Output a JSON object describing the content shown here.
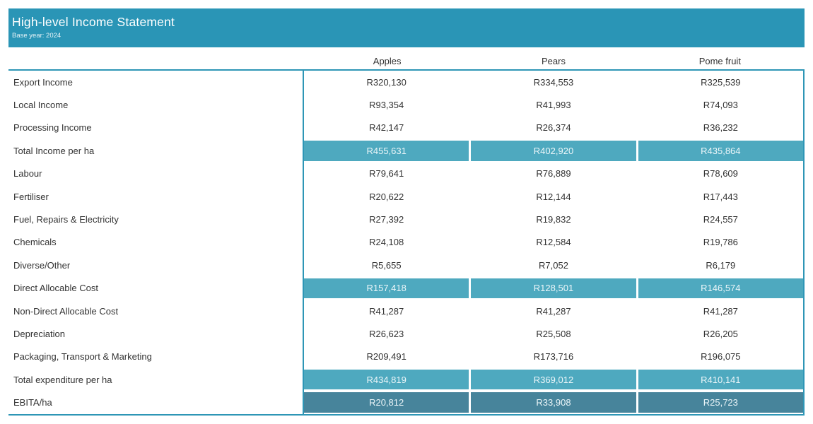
{
  "banner": {
    "title": "High-level Income Statement",
    "subtitle": "Base year: 2024"
  },
  "table": {
    "columns": [
      "Apples",
      "Pears",
      "Pome fruit"
    ],
    "rows": [
      {
        "label": "Export Income",
        "values": [
          "R320,130",
          "R334,553",
          "R325,539"
        ],
        "highlight": "none"
      },
      {
        "label": "Local Income",
        "values": [
          "R93,354",
          "R41,993",
          "R74,093"
        ],
        "highlight": "none"
      },
      {
        "label": "Processing Income",
        "values": [
          "R42,147",
          "R26,374",
          "R36,232"
        ],
        "highlight": "none"
      },
      {
        "label": "Total Income per ha",
        "values": [
          "R455,631",
          "R402,920",
          "R435,864"
        ],
        "highlight": "light"
      },
      {
        "label": "Labour",
        "values": [
          "R79,641",
          "R76,889",
          "R78,609"
        ],
        "highlight": "none"
      },
      {
        "label": "Fertiliser",
        "values": [
          "R20,622",
          "R12,144",
          "R17,443"
        ],
        "highlight": "none"
      },
      {
        "label": "Fuel, Repairs & Electricity",
        "values": [
          "R27,392",
          "R19,832",
          "R24,557"
        ],
        "highlight": "none"
      },
      {
        "label": "Chemicals",
        "values": [
          "R24,108",
          "R12,584",
          "R19,786"
        ],
        "highlight": "none"
      },
      {
        "label": "Diverse/Other",
        "values": [
          "R5,655",
          "R7,052",
          "R6,179"
        ],
        "highlight": "none"
      },
      {
        "label": "Direct Allocable Cost",
        "values": [
          "R157,418",
          "R128,501",
          "R146,574"
        ],
        "highlight": "light"
      },
      {
        "label": "Non-Direct Allocable Cost",
        "values": [
          "R41,287",
          "R41,287",
          "R41,287"
        ],
        "highlight": "none"
      },
      {
        "label": "Depreciation",
        "values": [
          "R26,623",
          "R25,508",
          "R26,205"
        ],
        "highlight": "none"
      },
      {
        "label": "Packaging, Transport & Marketing",
        "values": [
          "R209,491",
          "R173,716",
          "R196,075"
        ],
        "highlight": "none"
      },
      {
        "label": "Total expenditure per ha",
        "values": [
          "R434,819",
          "R369,012",
          "R410,141"
        ],
        "highlight": "light"
      },
      {
        "label": "EBITA/ha",
        "values": [
          "R20,812",
          "R33,908",
          "R25,723"
        ],
        "highlight": "dark"
      }
    ]
  },
  "colors": {
    "banner_teal": "#2A95B6",
    "border_teal": "#2E96B6",
    "highlight_light": "#4EA9BF",
    "highlight_dark": "#47849B",
    "band_text": "#ECF6F9",
    "body_text": "#333333"
  },
  "chart_data": {
    "type": "table",
    "title": "High-level Income Statement",
    "subtitle": "Base year: 2024",
    "columns": [
      "Apples",
      "Pears",
      "Pome fruit"
    ],
    "currency": "R",
    "rows": [
      {
        "label": "Export Income",
        "values": [
          320130,
          334553,
          325539
        ],
        "emphasis": "none"
      },
      {
        "label": "Local Income",
        "values": [
          93354,
          41993,
          74093
        ],
        "emphasis": "none"
      },
      {
        "label": "Processing Income",
        "values": [
          42147,
          26374,
          36232
        ],
        "emphasis": "none"
      },
      {
        "label": "Total Income per ha",
        "values": [
          455631,
          402920,
          435864
        ],
        "emphasis": "total"
      },
      {
        "label": "Labour",
        "values": [
          79641,
          76889,
          78609
        ],
        "emphasis": "none"
      },
      {
        "label": "Fertiliser",
        "values": [
          20622,
          12144,
          17443
        ],
        "emphasis": "none"
      },
      {
        "label": "Fuel, Repairs & Electricity",
        "values": [
          27392,
          19832,
          24557
        ],
        "emphasis": "none"
      },
      {
        "label": "Chemicals",
        "values": [
          24108,
          12584,
          19786
        ],
        "emphasis": "none"
      },
      {
        "label": "Diverse/Other",
        "values": [
          5655,
          7052,
          6179
        ],
        "emphasis": "none"
      },
      {
        "label": "Direct Allocable Cost",
        "values": [
          157418,
          128501,
          146574
        ],
        "emphasis": "total"
      },
      {
        "label": "Non-Direct Allocable Cost",
        "values": [
          41287,
          41287,
          41287
        ],
        "emphasis": "none"
      },
      {
        "label": "Depreciation",
        "values": [
          26623,
          25508,
          26205
        ],
        "emphasis": "none"
      },
      {
        "label": "Packaging, Transport & Marketing",
        "values": [
          209491,
          173716,
          196075
        ],
        "emphasis": "none"
      },
      {
        "label": "Total expenditure per ha",
        "values": [
          434819,
          369012,
          410141
        ],
        "emphasis": "total"
      },
      {
        "label": "EBITA/ha",
        "values": [
          20812,
          33908,
          25723
        ],
        "emphasis": "result"
      }
    ]
  }
}
